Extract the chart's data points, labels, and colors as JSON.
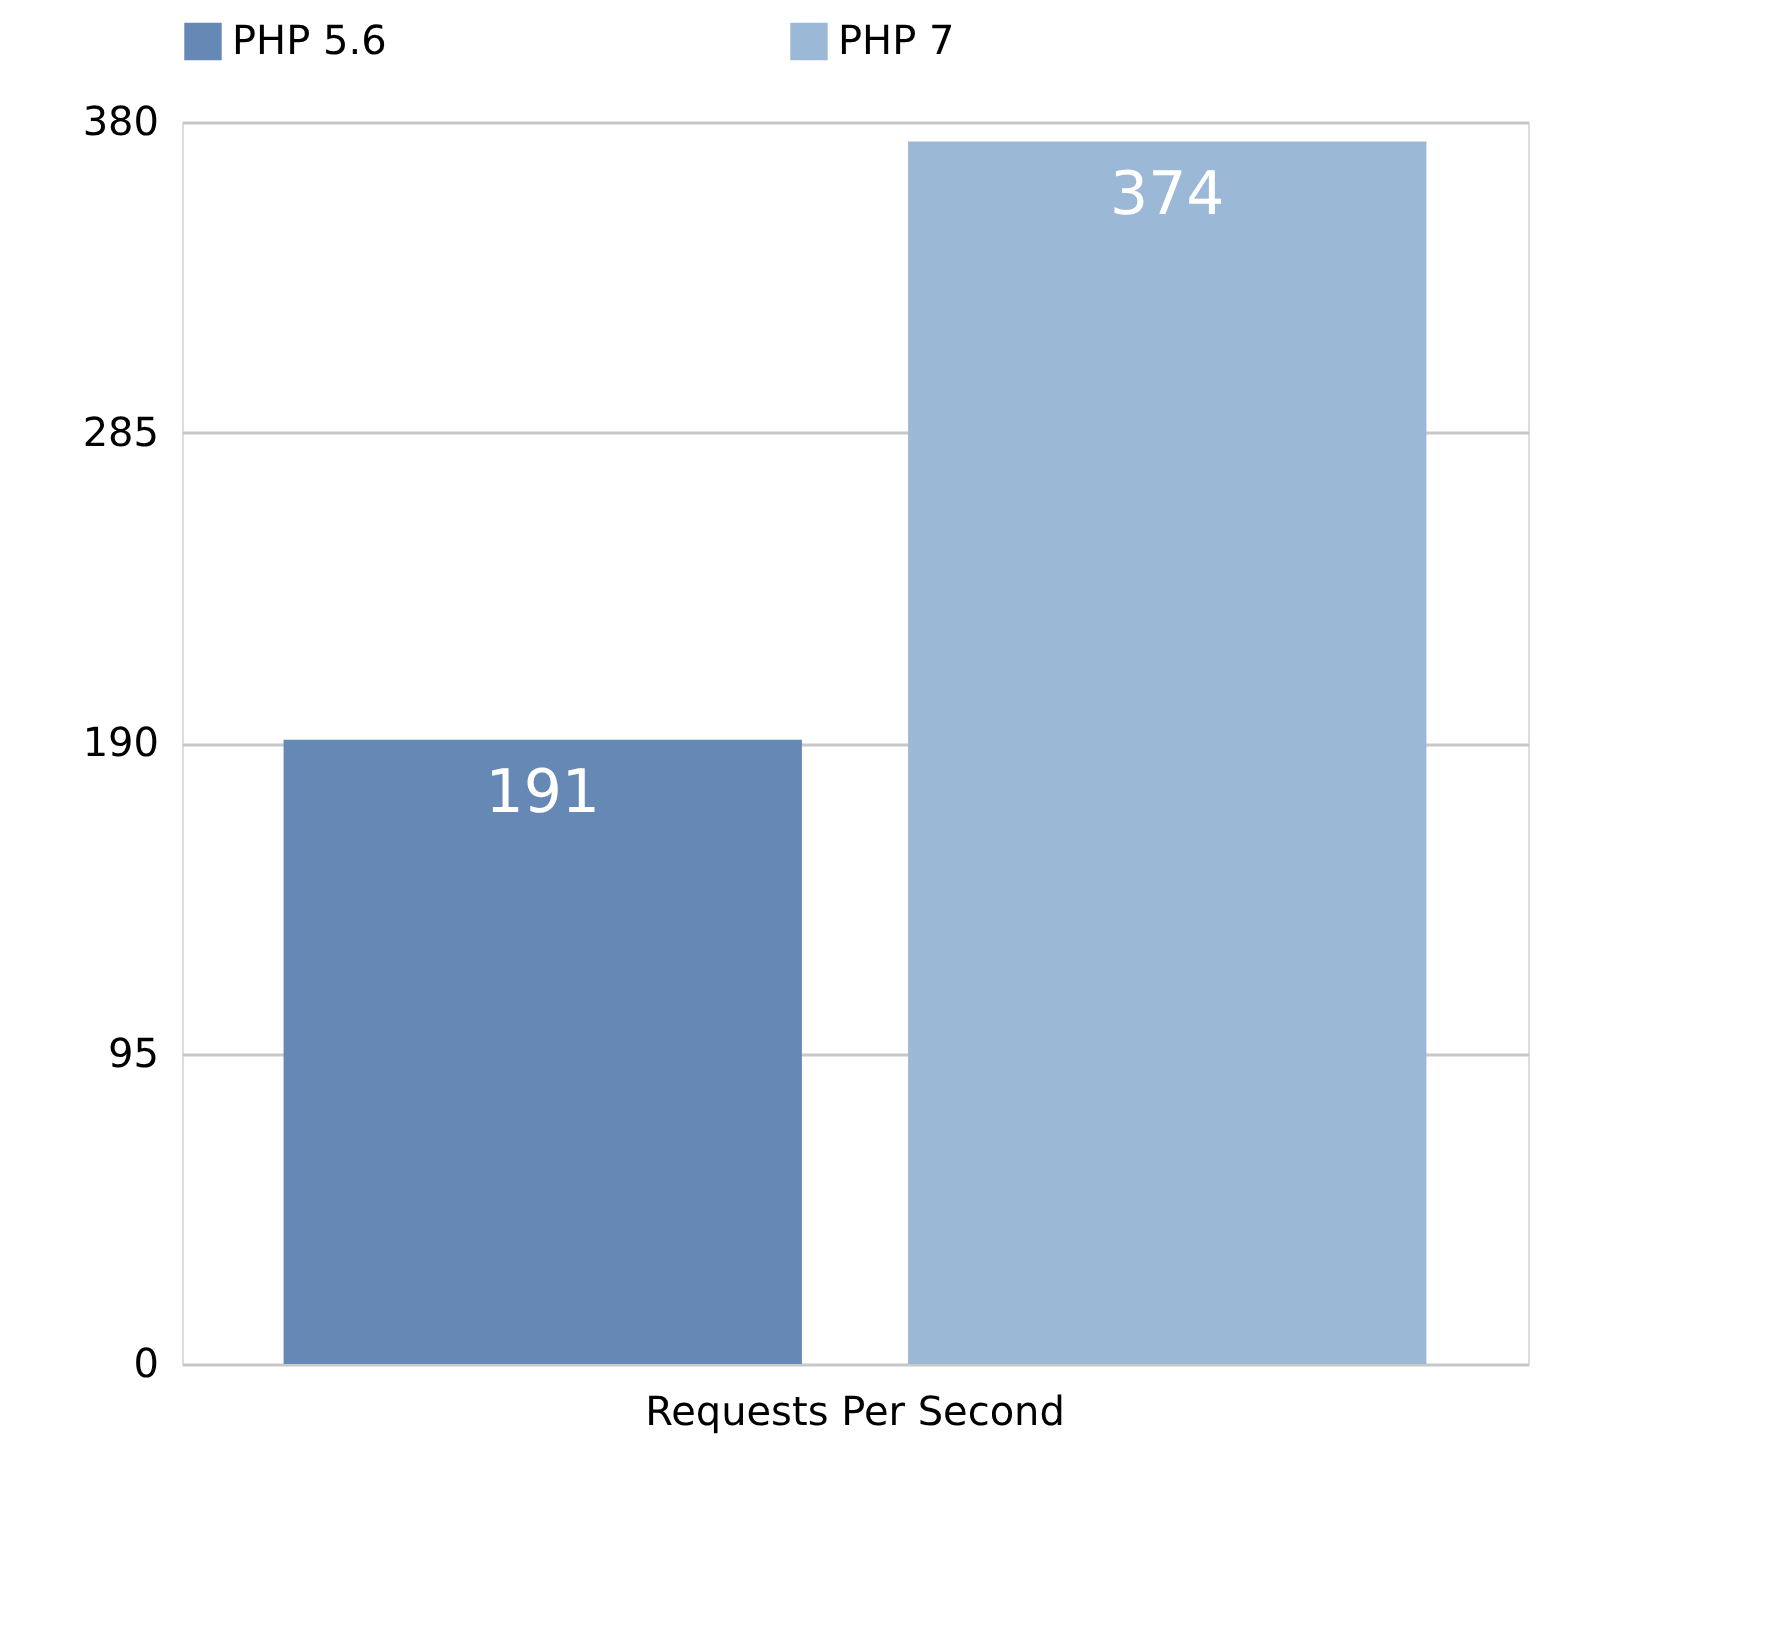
{
  "chart_data": {
    "type": "bar",
    "categories": [
      "Requests Per Second"
    ],
    "series": [
      {
        "name": "PHP 5.6",
        "color": "#6688b5",
        "values": [
          191
        ]
      },
      {
        "name": "PHP 7",
        "color": "#9bb8d7",
        "values": [
          374
        ]
      }
    ],
    "ylim": [
      0,
      380
    ],
    "yticks": [
      0,
      95,
      190,
      285,
      380
    ],
    "grid": "y",
    "legend": "top",
    "data_labels": true
  }
}
